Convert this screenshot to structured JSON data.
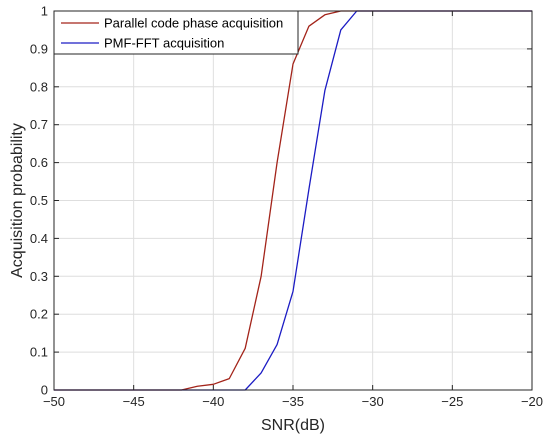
{
  "chart_data": {
    "type": "line",
    "title": "",
    "xlabel": "SNR(dB)",
    "ylabel": "Acquisition probability",
    "xlim": [
      -50,
      -20
    ],
    "ylim": [
      0,
      1
    ],
    "grid": true,
    "legend_position": "top-left",
    "xticks": [
      -50,
      -45,
      -40,
      -35,
      -30,
      -25,
      -20
    ],
    "yticks": [
      0,
      0.1,
      0.2,
      0.3,
      0.4,
      0.5,
      0.6,
      0.7,
      0.8,
      0.9,
      1
    ],
    "xtick_labels": [
      "−50",
      "−45",
      "−40",
      "−35",
      "−30",
      "−25",
      "−20"
    ],
    "ytick_labels": [
      "0",
      "0.1",
      "0.2",
      "0.3",
      "0.4",
      "0.5",
      "0.6",
      "0.7",
      "0.8",
      "0.9",
      "1"
    ],
    "series": [
      {
        "name": "Parallel code phase acquisition",
        "color": "#a3241a",
        "x": [
          -50,
          -42,
          -41,
          -40,
          -39,
          -38,
          -37,
          -36,
          -35,
          -34,
          -33,
          -32,
          -31,
          -30,
          -20
        ],
        "y": [
          0,
          0,
          0.01,
          0.015,
          0.03,
          0.11,
          0.3,
          0.6,
          0.86,
          0.96,
          0.99,
          1.0,
          1.0,
          1.0,
          1.0
        ]
      },
      {
        "name": "PMF-FFT acquisition",
        "color": "#1c1cc4",
        "x": [
          -50,
          -38,
          -37,
          -36,
          -35,
          -34,
          -33,
          -32,
          -31,
          -30,
          -20
        ],
        "y": [
          0,
          0,
          0.045,
          0.12,
          0.26,
          0.53,
          0.79,
          0.95,
          1.0,
          1.0,
          1.0
        ]
      }
    ]
  }
}
